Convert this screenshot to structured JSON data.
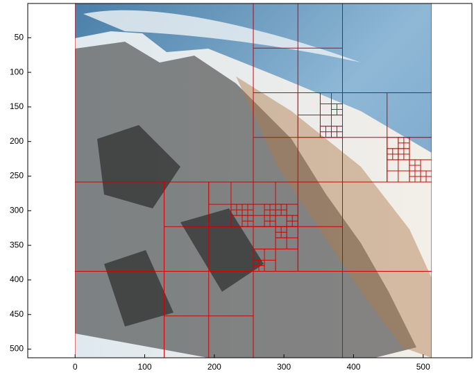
{
  "chart_data": {
    "type": "image",
    "xlim": [
      -68,
      570
    ],
    "ylim": [
      0.5,
      512.5
    ],
    "ydir": "reverse",
    "xticks": [
      0,
      100,
      200,
      300,
      400,
      500
    ],
    "yticks": [
      50,
      100,
      150,
      200,
      250,
      300,
      350,
      400,
      450,
      500
    ],
    "grid": false
  }
}
